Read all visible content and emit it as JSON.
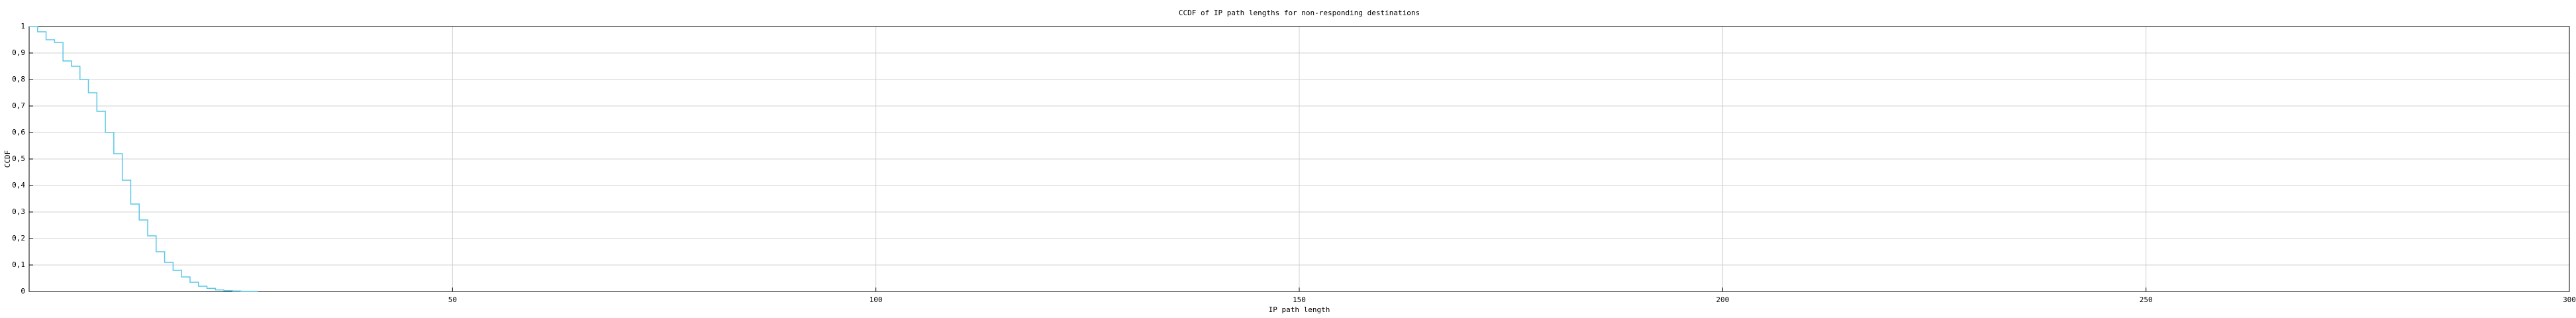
{
  "chart_data": {
    "type": "step",
    "title": "CCDF of IP path lengths for non-responding destinations",
    "x_label": "IP path length",
    "y_label": "CCDF",
    "x": [
      0,
      1,
      2,
      3,
      4,
      5,
      6,
      7,
      8,
      9,
      10,
      11,
      12,
      13,
      14,
      15,
      16,
      17,
      18,
      19,
      20,
      21,
      22,
      23,
      24,
      25,
      26,
      27
    ],
    "values": [
      1,
      0.98,
      0.95,
      0.94,
      0.87,
      0.85,
      0.8,
      0.75,
      0.68,
      0.6,
      0.52,
      0.42,
      0.33,
      0.27,
      0.21,
      0.15,
      0.11,
      0.08,
      0.055,
      0.035,
      0.02,
      0.012,
      0.006,
      0.003,
      0.002,
      0.001,
      0.001,
      0
    ],
    "color": "#5bc8e8",
    "xlim": [
      0,
      300
    ],
    "xticks": [
      50,
      100,
      150,
      200,
      250,
      300
    ],
    "ylim": [
      0,
      1
    ],
    "yticks": [
      0,
      {
        "value": 0.1,
        "label": "0,1"
      },
      {
        "value": 0.2,
        "label": "0,2"
      },
      {
        "value": 0.3,
        "label": "0,3"
      },
      {
        "value": 0.4,
        "label": "0,4"
      },
      {
        "value": 0.5,
        "label": "0,5"
      },
      {
        "value": 0.6,
        "label": "0,6"
      },
      {
        "value": 0.7,
        "label": "0,7"
      },
      {
        "value": 0.8,
        "label": "0,8"
      },
      {
        "value": 0.9,
        "label": "0,9"
      },
      1
    ],
    "grid": true
  }
}
